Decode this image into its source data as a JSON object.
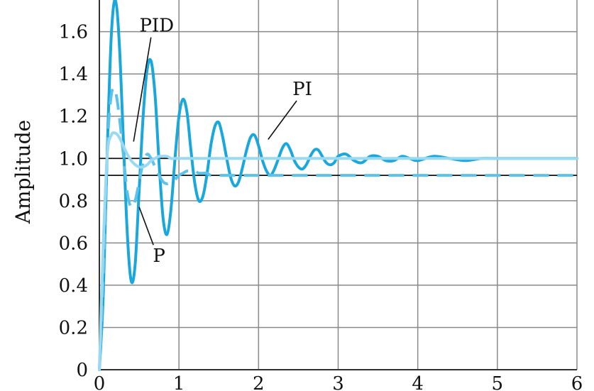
{
  "chart_data": {
    "type": "line",
    "title": "",
    "xlabel": "",
    "ylabel": "Amplitude",
    "xlim": [
      0,
      6
    ],
    "ylim": [
      0,
      1.75
    ],
    "grid": true,
    "xticks": [
      0,
      1,
      2,
      3,
      4,
      5,
      6
    ],
    "xtick_labels": [
      "0",
      "1",
      "2",
      "3",
      "4",
      "5",
      "6"
    ],
    "yticks": [
      0,
      0.2,
      0.4,
      0.6,
      0.8,
      1.0,
      1.2,
      1.4,
      1.6
    ],
    "ytick_labels": [
      "0",
      "0.2",
      "0.4",
      "0.6",
      "0.8",
      "1.0",
      "1.2",
      "1.4",
      "1.6"
    ],
    "reference_lines": [
      1.0,
      0.92
    ],
    "colors": {
      "pi": "#1aa7dc",
      "p": "#5cc2ea",
      "pid": "#9ad9f2",
      "grid": "#8a8a8a",
      "ref": "#111111"
    },
    "series": [
      {
        "name": "PI",
        "style": "solid",
        "x": [
          0,
          0.05,
          0.1,
          0.15,
          0.2,
          0.25,
          0.3,
          0.35,
          0.4,
          0.45,
          0.5,
          0.55,
          0.6,
          0.65,
          0.7,
          0.75,
          0.8,
          0.85,
          0.9,
          0.95,
          1.0,
          1.05,
          1.1,
          1.15,
          1.2,
          1.25,
          1.3,
          1.35,
          1.4,
          1.45,
          1.5,
          1.55,
          1.6,
          1.65,
          1.7,
          1.75,
          1.8,
          1.85,
          1.9,
          1.95,
          2.0,
          2.05,
          2.1,
          2.15,
          2.2,
          2.25,
          2.3,
          2.35,
          2.4,
          2.45,
          2.5,
          2.55,
          2.6,
          2.65,
          2.7,
          2.75,
          2.8,
          2.85,
          2.9,
          2.95,
          3.0,
          3.1,
          3.2,
          3.3,
          3.4,
          3.5,
          3.6,
          3.7,
          3.8,
          3.9,
          4.0,
          4.2,
          4.4,
          4.6,
          4.8,
          5.0,
          5.2,
          5.4,
          5.6,
          5.8,
          6.0
        ],
        "values": [
          0,
          0.36,
          1.05,
          1.58,
          1.75,
          1.55,
          1.1,
          0.65,
          0.42,
          0.5,
          0.85,
          1.2,
          1.42,
          1.46,
          1.3,
          0.98,
          0.72,
          0.64,
          0.76,
          1.0,
          1.2,
          1.28,
          1.22,
          1.04,
          0.88,
          0.8,
          0.82,
          0.92,
          1.06,
          1.15,
          1.17,
          1.1,
          1.0,
          0.91,
          0.87,
          0.89,
          0.96,
          1.04,
          1.1,
          1.11,
          1.06,
          0.99,
          0.94,
          0.92,
          0.95,
          1.0,
          1.05,
          1.07,
          1.04,
          0.99,
          0.96,
          0.95,
          0.97,
          1.01,
          1.04,
          1.04,
          1.01,
          0.98,
          0.97,
          0.98,
          1.01,
          1.02,
          0.99,
          0.98,
          1.01,
          1.01,
          0.99,
          0.99,
          1.01,
          1.0,
          0.99,
          1.01,
          1.0,
          0.99,
          1.0,
          1.0,
          1.0,
          1.0,
          1.0,
          1.0,
          1.0
        ]
      },
      {
        "name": "P",
        "style": "dashed",
        "x": [
          0,
          0.05,
          0.1,
          0.15,
          0.2,
          0.25,
          0.3,
          0.35,
          0.4,
          0.45,
          0.5,
          0.55,
          0.6,
          0.65,
          0.7,
          0.75,
          0.8,
          0.85,
          0.9,
          0.95,
          1.0,
          1.05,
          1.1,
          1.15,
          1.2,
          1.25,
          1.3,
          1.35,
          1.4,
          1.5,
          1.6,
          1.8,
          2.0,
          2.5,
          3.0,
          4.0,
          5.0,
          6.0
        ],
        "values": [
          0,
          0.45,
          1.05,
          1.3,
          1.32,
          1.2,
          1.02,
          0.84,
          0.77,
          0.8,
          0.89,
          0.98,
          1.02,
          1.0,
          0.96,
          0.92,
          0.89,
          0.88,
          0.89,
          0.9,
          0.92,
          0.93,
          0.94,
          0.94,
          0.94,
          0.93,
          0.93,
          0.93,
          0.92,
          0.92,
          0.92,
          0.92,
          0.92,
          0.92,
          0.92,
          0.92,
          0.92,
          0.92
        ]
      },
      {
        "name": "PID",
        "style": "solid",
        "x": [
          0,
          0.05,
          0.1,
          0.15,
          0.2,
          0.25,
          0.3,
          0.35,
          0.4,
          0.45,
          0.5,
          0.55,
          0.6,
          0.65,
          0.7,
          0.75,
          0.8,
          0.85,
          0.9,
          0.95,
          1.0,
          1.1,
          1.2,
          1.4,
          1.6,
          2.0,
          2.5,
          3.0,
          4.0,
          5.0,
          6.0
        ],
        "values": [
          0,
          0.6,
          1.02,
          1.11,
          1.12,
          1.1,
          1.06,
          1.02,
          0.99,
          0.97,
          0.96,
          0.96,
          0.97,
          0.99,
          1.0,
          1.01,
          1.01,
          1.01,
          1.0,
          1.0,
          1.0,
          1.0,
          1.0,
          1.0,
          1.0,
          1.0,
          1.0,
          1.0,
          1.0,
          1.0,
          1.0
        ]
      }
    ],
    "annotations": [
      {
        "text": "PID",
        "x": 0.72,
        "y": 1.6,
        "target_x": 0.43,
        "target_y": 1.08
      },
      {
        "text": "PI",
        "x": 2.55,
        "y": 1.3,
        "target_x": 2.12,
        "target_y": 1.09
      },
      {
        "text": "P",
        "x": 0.75,
        "y": 0.51,
        "target_x": 0.5,
        "target_y": 0.77
      }
    ]
  }
}
